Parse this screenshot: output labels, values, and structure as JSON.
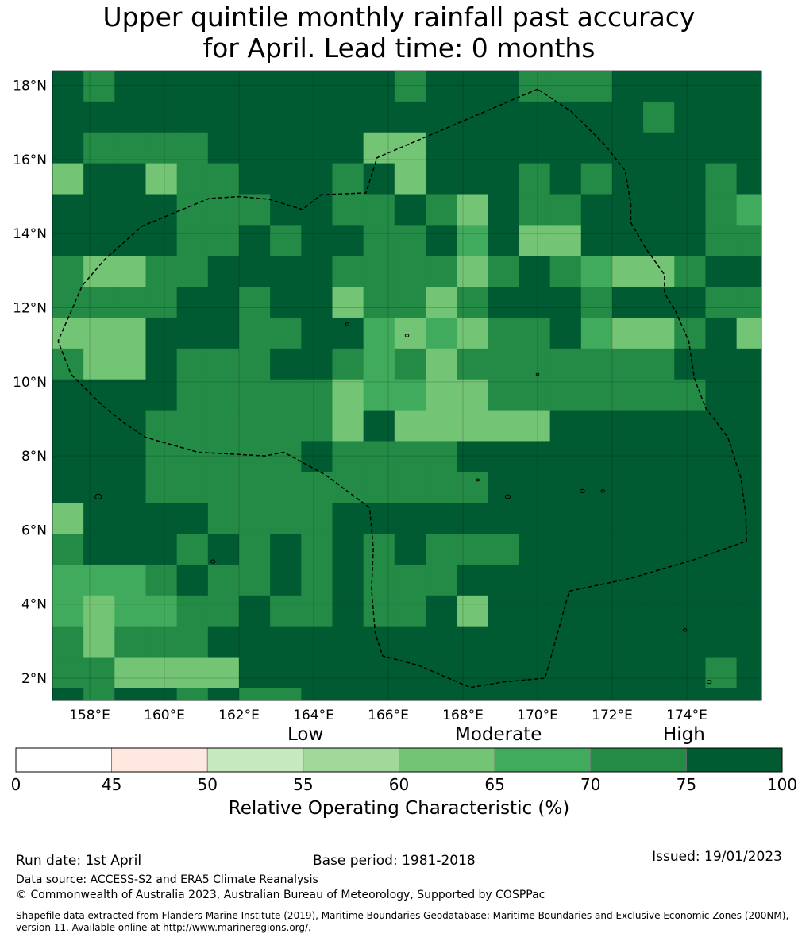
{
  "title": {
    "line1": "Upper quintile monthly rainfall past accuracy",
    "line2": "for April. Lead time: 0 months"
  },
  "map": {
    "lat_labels": [
      "18°N",
      "16°N",
      "14°N",
      "12°N",
      "10°N",
      "8°N",
      "6°N",
      "4°N",
      "2°N"
    ],
    "lon_labels": [
      "158°E",
      "160°E",
      "162°E",
      "164°E",
      "166°E",
      "168°E",
      "170°E",
      "172°E",
      "174°E"
    ],
    "lon_range": [
      157,
      176
    ],
    "lat_range": [
      1.4,
      18.4
    ],
    "grid_cols": 23,
    "grid_rows": 21,
    "grid_origin": {
      "lon": 157,
      "lat": 18.4
    },
    "grid_step": {
      "lon": 0.8333,
      "lat": 0.8333
    },
    "roc_grid": [
      "DCDDDDDDDDDCDDDCCCDDDDD",
      "DDDDDDDDDDDDDDDDDDDCDDD",
      "DCCCCDDDDDBBDDDDDDDDDDD",
      "BDDBCCDDDCDBDDDCDCDDDCD",
      "DDDDCCCDDCCDCBDCCDDDDCA",
      "DDDDCCDCDDCCDADBBDDDDCC",
      "CBBCCDDDDCCCCBCDCABBCDD",
      "CCCCDDCDDBCCBCDDDCDDDCC",
      "BBBDDDCCDDABABCCDABBCDB",
      "CBBDCCCDDCACBCCCCCCCDDD",
      "DDDDCCCCCBAABBCCCCCCCDD",
      "DDDCCCCCCBDBBBBBDDDDDDD",
      "DDDCCCCCDCCCCDDDDDDDDDD",
      "DDDCCCCCCCCCCCDDDDDDDDD",
      "BDDDDCCCCDDDDDDDDDDDDDD",
      "CDDDCDCDCDCDCCCDDDDDDDD",
      "AAACDCCDCDCCCDDDDDDDDDD",
      "ABAACCDCCDCCDBDDDDDDDDD",
      "CBCCCDDDDDDDDDDDDDDDDDD",
      "CCBBBBDDDDDDDDDDDDDDDCD",
      "DCDDCDCCDDDDDDDDDDDDDDD"
    ],
    "roc_classes": {
      "A": "70",
      "B": "65",
      "C": "75",
      "D": "100"
    }
  },
  "colorbar": {
    "categories": [
      "Low",
      "Moderate",
      "High"
    ],
    "ticks": [
      "0",
      "45",
      "50",
      "55",
      "60",
      "65",
      "70",
      "75",
      "100"
    ],
    "colors": [
      "#ffffff",
      "#fee8df",
      "#c7e9c0",
      "#a1d99b",
      "#74c476",
      "#41ab5d",
      "#238b45",
      "#005a32"
    ],
    "label": "Relative Operating Characteristic (%)"
  },
  "footer": {
    "run_date": "Run date: 1st April",
    "base_period": "Base period: 1981-2018",
    "issued": "Issued: 19/01/2023",
    "data_source": "Data source: ACCESS-S2 and ERA5 Climate Reanalysis",
    "copyright": "© Commonwealth of Australia 2023, Australian Bureau of Meteorology, Supported by COSPPac",
    "shapefile_line1": "Shapefile data extracted from Flanders Marine Institute (2019), Maritime Boundaries Geodatabase: Maritime Boundaries and Exclusive Economic Zones (200NM),",
    "shapefile_line2": "version 11. Available online at http://www.marineregions.org/."
  },
  "style": {
    "background": "#ffffff",
    "text_color": "#000000",
    "eez_line_color": "#000000"
  }
}
